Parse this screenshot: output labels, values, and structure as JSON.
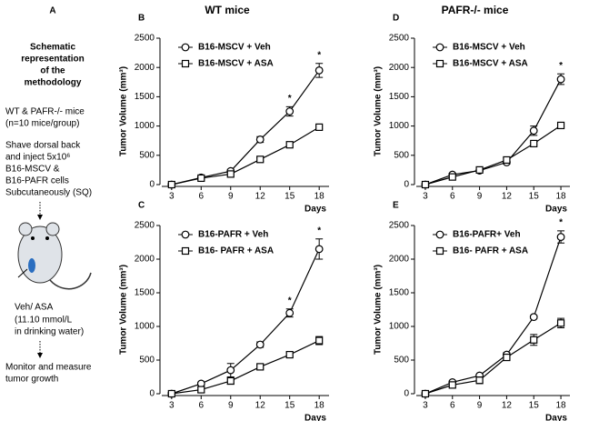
{
  "schematic": {
    "panel": "A",
    "heading": [
      "Schematic",
      "representation",
      "of the",
      "methodology"
    ],
    "steps": [
      "WT & PAFR-/- mice",
      "(n=10 mice/group)",
      "Shave dorsal back",
      "and inject 5x10⁶",
      "B16-MSCV &",
      "B16-PAFR cells",
      "Subcutaneously (SQ)"
    ],
    "treatment": [
      "Veh/ ASA",
      "(11.10 mmol/L",
      "in drinking water)"
    ],
    "outcome": [
      "Monitor and measure",
      "tumor growth"
    ]
  },
  "chart_data": [
    {
      "type": "line",
      "panel": "B",
      "title": "WT mice",
      "x_label": "Days",
      "y_label": "Tumor Volume (mm³)",
      "x": [
        3,
        6,
        9,
        12,
        15,
        18
      ],
      "xlim": [
        2,
        19
      ],
      "xticks": [
        3,
        6,
        9,
        12,
        15,
        18
      ],
      "ylim": [
        0,
        2500
      ],
      "yticks": [
        0,
        500,
        1000,
        1500,
        2000,
        2500
      ],
      "legend": "upper left",
      "series": [
        {
          "name": "B16-MSCV + Veh",
          "marker": "circle",
          "color": "#000000",
          "values": [
            0,
            120,
            230,
            770,
            1250,
            1950
          ],
          "errors": [
            20,
            20,
            30,
            50,
            80,
            120
          ]
        },
        {
          "name": "B16-MSCV + ASA",
          "marker": "square",
          "color": "#000000",
          "values": [
            0,
            110,
            180,
            430,
            680,
            980
          ],
          "errors": [
            20,
            20,
            20,
            30,
            30,
            20
          ]
        }
      ],
      "annotations": [
        {
          "text": "*",
          "x": 15
        },
        {
          "text": "*",
          "x": 18
        }
      ]
    },
    {
      "type": "line",
      "panel": "C",
      "x_label": "Days",
      "y_label": "Tumor Volume (mm³)",
      "x": [
        3,
        6,
        9,
        12,
        15,
        18
      ],
      "xlim": [
        2,
        19
      ],
      "xticks": [
        3,
        6,
        9,
        12,
        15,
        18
      ],
      "ylim": [
        0,
        2500
      ],
      "yticks": [
        0,
        500,
        1000,
        1500,
        2000,
        2500
      ],
      "legend": "upper left",
      "series": [
        {
          "name": "B16-PAFR + Veh",
          "marker": "circle",
          "color": "#000000",
          "values": [
            0,
            150,
            350,
            730,
            1200,
            2150
          ],
          "errors": [
            20,
            20,
            100,
            40,
            60,
            150
          ]
        },
        {
          "name": "B16- PAFR + ASA",
          "marker": "square",
          "color": "#000000",
          "values": [
            0,
            60,
            190,
            400,
            580,
            790
          ],
          "errors": [
            20,
            40,
            50,
            30,
            30,
            60
          ]
        }
      ],
      "annotations": [
        {
          "text": "*",
          "x": 15
        },
        {
          "text": "*",
          "x": 18
        }
      ]
    },
    {
      "type": "line",
      "panel": "D",
      "title": "PAFR-/-  mice",
      "x_label": "Days",
      "y_label": "Tumor Volume (mm³)",
      "x": [
        3,
        6,
        9,
        12,
        15,
        18
      ],
      "xlim": [
        2,
        19
      ],
      "xticks": [
        3,
        6,
        9,
        12,
        15,
        18
      ],
      "ylim": [
        0,
        2500
      ],
      "yticks": [
        0,
        500,
        1000,
        1500,
        2000,
        2500
      ],
      "legend": "upper left",
      "series": [
        {
          "name": "B16-MSCV + Veh",
          "marker": "circle",
          "color": "#000000",
          "values": [
            0,
            170,
            240,
            380,
            920,
            1800
          ],
          "errors": [
            20,
            20,
            20,
            30,
            80,
            90
          ]
        },
        {
          "name": "B16-MSCV + ASA",
          "marker": "square",
          "color": "#000000",
          "values": [
            0,
            130,
            250,
            420,
            700,
            1010
          ],
          "errors": [
            20,
            20,
            20,
            30,
            20,
            20
          ]
        }
      ],
      "annotations": [
        {
          "text": "*",
          "x": 18
        }
      ]
    },
    {
      "type": "line",
      "panel": "E",
      "x_label": "Days",
      "y_label": "Tumor Volume (mm³)",
      "x": [
        3,
        6,
        9,
        12,
        15,
        18
      ],
      "xlim": [
        2,
        19
      ],
      "xticks": [
        3,
        6,
        9,
        12,
        15,
        18
      ],
      "ylim": [
        0,
        2500
      ],
      "yticks": [
        0,
        500,
        1000,
        1500,
        2000,
        2500
      ],
      "legend": "upper left",
      "series": [
        {
          "name": "B16-PAFR+ Veh",
          "marker": "circle",
          "color": "#000000",
          "values": [
            0,
            170,
            270,
            580,
            1140,
            2330
          ],
          "errors": [
            10,
            20,
            20,
            30,
            20,
            90
          ]
        },
        {
          "name": "B16- PAFR + ASA",
          "marker": "square",
          "color": "#000000",
          "values": [
            0,
            130,
            200,
            540,
            800,
            1050
          ],
          "errors": [
            20,
            30,
            50,
            30,
            80,
            70
          ]
        }
      ],
      "annotations": [
        {
          "text": "*",
          "x": 18
        }
      ]
    }
  ]
}
